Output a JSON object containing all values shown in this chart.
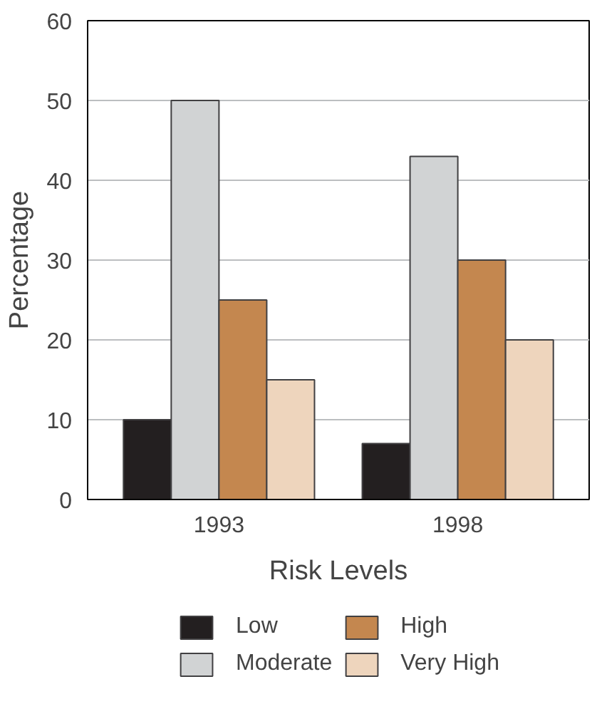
{
  "chart_data": {
    "type": "bar",
    "xlabel": "Risk Levels",
    "ylabel": "Percentage",
    "categories": [
      "1993",
      "1998"
    ],
    "series": [
      {
        "name": "Low",
        "color": "#231f20",
        "values": [
          10,
          7
        ]
      },
      {
        "name": "Moderate",
        "color": "#d1d3d4",
        "values": [
          50,
          43
        ]
      },
      {
        "name": "High",
        "color": "#c4874f",
        "values": [
          25,
          30
        ]
      },
      {
        "name": "Very High",
        "color": "#eed5bd",
        "values": [
          15,
          20
        ]
      }
    ],
    "ylim": [
      0,
      60
    ],
    "yticks": [
      0,
      10,
      20,
      30,
      40,
      50,
      60
    ],
    "grid": "y",
    "legend": "bottom"
  }
}
